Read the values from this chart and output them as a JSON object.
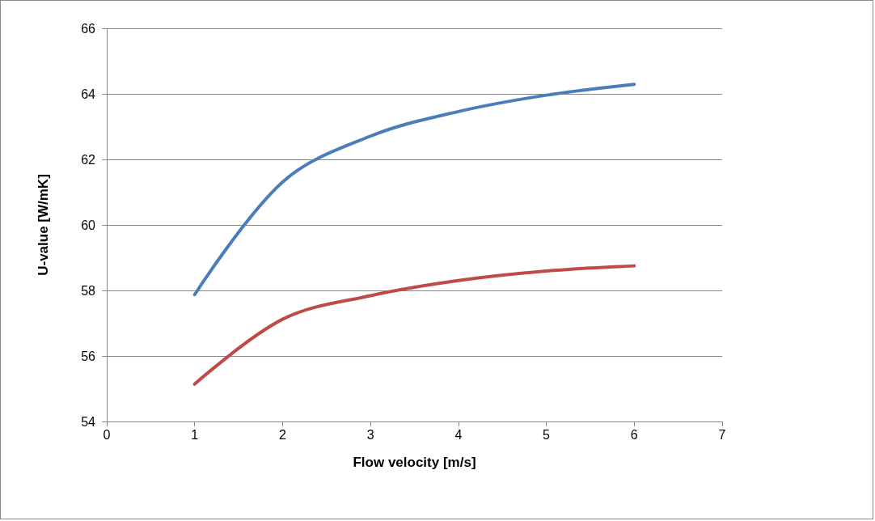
{
  "chart_data": {
    "type": "line",
    "xlabel": "Flow velocity [m/s]",
    "ylabel": "U-value [W/mK]",
    "x": [
      1,
      2,
      3,
      4,
      5,
      6
    ],
    "series": [
      {
        "color": "#4a7ebb",
        "values": [
          57.87,
          61.31,
          62.71,
          63.46,
          63.96,
          64.29
        ]
      },
      {
        "color": "#be4b48",
        "values": [
          55.14,
          57.12,
          57.84,
          58.3,
          58.59,
          58.75
        ]
      }
    ],
    "xlim": [
      0,
      7
    ],
    "xticks": [
      0,
      1,
      2,
      3,
      4,
      5,
      6,
      7
    ],
    "ylim": [
      54,
      66
    ],
    "yticks": [
      54,
      56,
      58,
      60,
      62,
      64,
      66
    ],
    "grid": "y",
    "marker": "none",
    "line_style": "solid"
  }
}
